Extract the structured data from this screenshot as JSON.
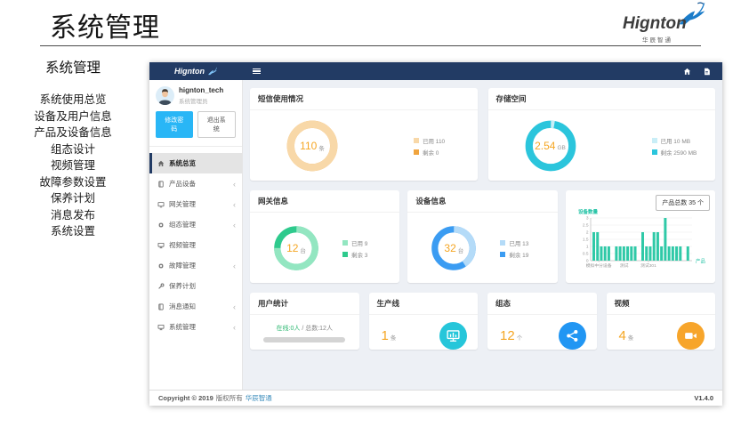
{
  "header": {
    "title": "系统管理",
    "brand": "Hignton",
    "brand_sub": "华辰智通"
  },
  "outer_menu": {
    "heading": "系统管理",
    "items": [
      "系统使用总览",
      "设备及用户信息",
      "产品及设备信息",
      "组态设计",
      "视频管理",
      "故障参数设置",
      "保养计划",
      "消息发布",
      "系统设置"
    ]
  },
  "user": {
    "name": "hignton_tech",
    "role": "系统管理员",
    "change_password": "修改密码",
    "logout": "退出系统"
  },
  "side_menu": {
    "items": [
      {
        "id": "overview",
        "label": "系统总览",
        "icon": "home-icon",
        "shape": "home",
        "active": true,
        "chevron": false
      },
      {
        "id": "product-device",
        "label": "产品设备",
        "icon": "book-icon",
        "shape": "book",
        "active": false,
        "chevron": true
      },
      {
        "id": "gateway",
        "label": "网关管理",
        "icon": "tv-icon",
        "shape": "tv",
        "active": false,
        "chevron": true
      },
      {
        "id": "scada",
        "label": "组态管理",
        "icon": "gears-icon",
        "shape": "gears",
        "active": false,
        "chevron": true
      },
      {
        "id": "video",
        "label": "视频管理",
        "icon": "monitor-icon",
        "shape": "monitor",
        "active": false,
        "chevron": false
      },
      {
        "id": "fault",
        "label": "故障管理",
        "icon": "gears-icon",
        "shape": "gears",
        "active": false,
        "chevron": true
      },
      {
        "id": "maintenance",
        "label": "保养计划",
        "icon": "wrench-icon",
        "shape": "wrench",
        "active": false,
        "chevron": false
      },
      {
        "id": "message",
        "label": "消息通知",
        "icon": "book-icon",
        "shape": "book",
        "active": false,
        "chevron": true
      },
      {
        "id": "system",
        "label": "系统管理",
        "icon": "monitor-icon",
        "shape": "monitor",
        "active": false,
        "chevron": true
      }
    ]
  },
  "cards": {
    "sms": {
      "title": "短信使用情况"
    },
    "storage": {
      "title": "存储空间"
    },
    "gateway": {
      "title": "网关信息"
    },
    "device": {
      "title": "设备信息"
    },
    "products": {
      "button_label": "产品总数 35 个"
    },
    "users": {
      "title": "用户统计",
      "online": "在线:0人",
      "total": "/ 总数:12人"
    },
    "line": {
      "title": "生产线",
      "value": "1",
      "unit": "条",
      "color": "#26c6da"
    },
    "scada": {
      "title": "组态",
      "value": "12",
      "unit": "个",
      "color": "#2196f3"
    },
    "video": {
      "title": "视频",
      "value": "4",
      "unit": "条",
      "color": "#f7a52b"
    }
  },
  "chart_data": [
    {
      "id": "sms",
      "type": "pie",
      "title": "短信使用情况",
      "center_value": "110",
      "center_unit": "条",
      "slices": [
        {
          "label": "已用",
          "legend": "已用 110",
          "value": 110,
          "color": "#f8d8a8"
        },
        {
          "label": "剩余",
          "legend": "剩余 0",
          "value": 0,
          "color": "#f0a43e"
        }
      ]
    },
    {
      "id": "storage",
      "type": "pie",
      "title": "存储空间",
      "center_value": "2.54",
      "center_unit": "GB",
      "slices": [
        {
          "label": "已用",
          "legend": "已用 10 MB",
          "value": 10,
          "color": "#c9eef7"
        },
        {
          "label": "剩余",
          "legend": "剩余 2590 MB",
          "value": 2590,
          "color": "#2bc5dc"
        }
      ]
    },
    {
      "id": "gateway",
      "type": "pie",
      "title": "网关信息",
      "center_value": "12",
      "center_unit": "台",
      "slices": [
        {
          "label": "已用",
          "legend": "已用 9",
          "value": 9,
          "color": "#93e6c1"
        },
        {
          "label": "剩余",
          "legend": "剩余 3",
          "value": 3,
          "color": "#2eca8d"
        }
      ]
    },
    {
      "id": "device",
      "type": "pie",
      "title": "设备信息",
      "center_value": "32",
      "center_unit": "台",
      "slices": [
        {
          "label": "已用",
          "legend": "已用 13",
          "value": 13,
          "color": "#b4dbf8"
        },
        {
          "label": "剩余",
          "legend": "剩余 19",
          "value": 19,
          "color": "#3b9cf2"
        }
      ]
    },
    {
      "id": "products",
      "type": "bar",
      "title": "设备数量",
      "xlabel": "产品",
      "ylim": [
        0,
        3
      ],
      "yticks": [
        0,
        0.5,
        1,
        1.5,
        2,
        2.5,
        3
      ],
      "bar_color": "#2fc9a7",
      "accent_color": "#1dc1a3",
      "values": [
        2,
        2,
        1,
        1,
        1,
        0,
        1,
        1,
        1,
        1,
        1,
        1,
        0,
        2,
        1,
        1,
        2,
        2,
        1,
        3,
        1,
        1,
        1,
        1,
        0,
        1
      ],
      "x_ticks": [
        {
          "label": "模拟中分设备",
          "pos": 0.08
        },
        {
          "label": "测试",
          "pos": 0.33
        },
        {
          "label": "测试301",
          "pos": 0.57
        }
      ],
      "total_label": "产品总数 35 个"
    }
  ],
  "footer": {
    "copyright_bold": "Copyright © 2019",
    "copyright_rest": "版权所有",
    "company": "华辰智通",
    "version": "V1.4.0"
  },
  "colors": {
    "navbar": "#223b64",
    "number_orange": "#f5a623",
    "primary_button": "#29b6f6",
    "link_blue": "#3c8dbc"
  }
}
